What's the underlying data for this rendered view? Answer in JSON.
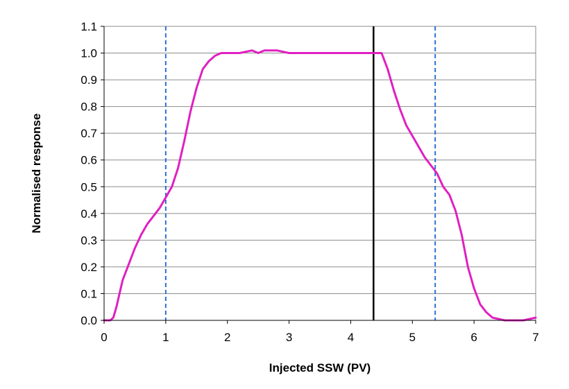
{
  "chart_data": {
    "type": "line",
    "title": "",
    "xlabel": "Injected SSW (PV)",
    "ylabel": "Normalised response",
    "xlim": [
      0,
      7
    ],
    "ylim": [
      0,
      1.1
    ],
    "x_ticks": [
      "0",
      "1",
      "2",
      "3",
      "4",
      "5",
      "6",
      "7"
    ],
    "y_ticks": [
      "0.0",
      "0.1",
      "0.2",
      "0.3",
      "0.4",
      "0.5",
      "0.6",
      "0.7",
      "0.8",
      "0.9",
      "1.0",
      "1.1"
    ],
    "grid": "horizontal",
    "legend": "none",
    "series": [
      {
        "color": "#e020c0",
        "x": [
          0.0,
          0.1,
          0.15,
          0.2,
          0.25,
          0.3,
          0.35,
          0.4,
          0.5,
          0.6,
          0.7,
          0.8,
          0.9,
          1.0,
          1.1,
          1.2,
          1.3,
          1.4,
          1.5,
          1.6,
          1.7,
          1.8,
          1.9,
          2.0,
          2.2,
          2.4,
          2.5,
          2.6,
          2.8,
          3.0,
          3.5,
          4.0,
          4.3,
          4.5,
          4.6,
          4.7,
          4.8,
          4.9,
          5.0,
          5.2,
          5.4,
          5.5,
          5.6,
          5.7,
          5.8,
          5.9,
          6.0,
          6.1,
          6.2,
          6.3,
          6.5,
          6.8,
          7.0
        ],
        "y": [
          0.0,
          0.0,
          0.01,
          0.05,
          0.1,
          0.15,
          0.18,
          0.21,
          0.27,
          0.32,
          0.36,
          0.39,
          0.42,
          0.46,
          0.5,
          0.57,
          0.67,
          0.78,
          0.87,
          0.94,
          0.97,
          0.99,
          1.0,
          1.0,
          1.0,
          1.01,
          1.0,
          1.01,
          1.01,
          1.0,
          1.0,
          1.0,
          1.0,
          1.0,
          0.94,
          0.86,
          0.79,
          0.73,
          0.69,
          0.61,
          0.55,
          0.5,
          0.47,
          0.41,
          0.32,
          0.2,
          0.12,
          0.06,
          0.03,
          0.01,
          0.0,
          0.0,
          0.01
        ]
      }
    ],
    "reference_lines": [
      {
        "orientation": "vertical",
        "x": 1.0,
        "color": "#2a6fd0",
        "style": "dashed"
      },
      {
        "orientation": "vertical",
        "x": 4.37,
        "color": "#000000",
        "style": "solid"
      },
      {
        "orientation": "vertical",
        "x": 5.37,
        "color": "#2a6fd0",
        "style": "dashed"
      }
    ]
  }
}
